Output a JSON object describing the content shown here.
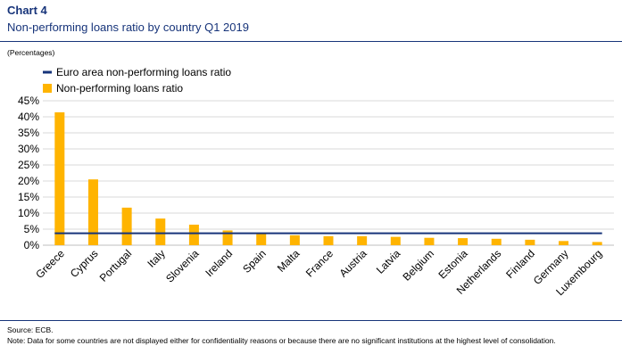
{
  "header": {
    "title": "Chart 4",
    "subtitle": "Non-performing loans ratio by country Q1 2019",
    "unit": "(Percentages)"
  },
  "footer": {
    "source": "Source: ECB.",
    "note": "Note: Data for some countries are not displayed either for confidentiality reasons or because there are no significant institutions at the highest level of consolidation."
  },
  "colors": {
    "bar": "#ffb400",
    "line": "#17347a",
    "grid": "#d9d9d9",
    "text": "#000000"
  },
  "chart_data": {
    "type": "bar",
    "categories": [
      "Greece",
      "Cyprus",
      "Portugal",
      "Italy",
      "Slovenia",
      "Ireland",
      "Spain",
      "Malta",
      "France",
      "Austria",
      "Latvia",
      "Belgium",
      "Estonia",
      "Netherlands",
      "Finland",
      "Germany",
      "Luxembourg"
    ],
    "series": [
      {
        "name": "Non-performing loans ratio",
        "kind": "bar",
        "values": [
          41.4,
          20.5,
          11.7,
          8.3,
          6.4,
          4.6,
          3.7,
          3.1,
          2.8,
          2.8,
          2.6,
          2.3,
          2.2,
          2.0,
          1.7,
          1.3,
          1.0
        ]
      },
      {
        "name": "Euro area non-performing loans ratio",
        "kind": "line",
        "values": [
          3.7,
          3.7,
          3.7,
          3.7,
          3.7,
          3.7,
          3.7,
          3.7,
          3.7,
          3.7,
          3.7,
          3.7,
          3.7,
          3.7,
          3.7,
          3.7,
          3.7
        ]
      }
    ],
    "ylim": [
      0,
      45
    ],
    "yticks": [
      0,
      5,
      10,
      15,
      20,
      25,
      30,
      35,
      40,
      45
    ],
    "ytick_labels": [
      "0%",
      "5%",
      "10%",
      "15%",
      "20%",
      "25%",
      "30%",
      "35%",
      "40%",
      "45%"
    ],
    "legend": [
      {
        "label": "Euro area non-performing loans ratio",
        "kind": "line"
      },
      {
        "label": "Non-performing loans ratio",
        "kind": "bar"
      }
    ],
    "legend_position": "top-left",
    "grid": true
  }
}
